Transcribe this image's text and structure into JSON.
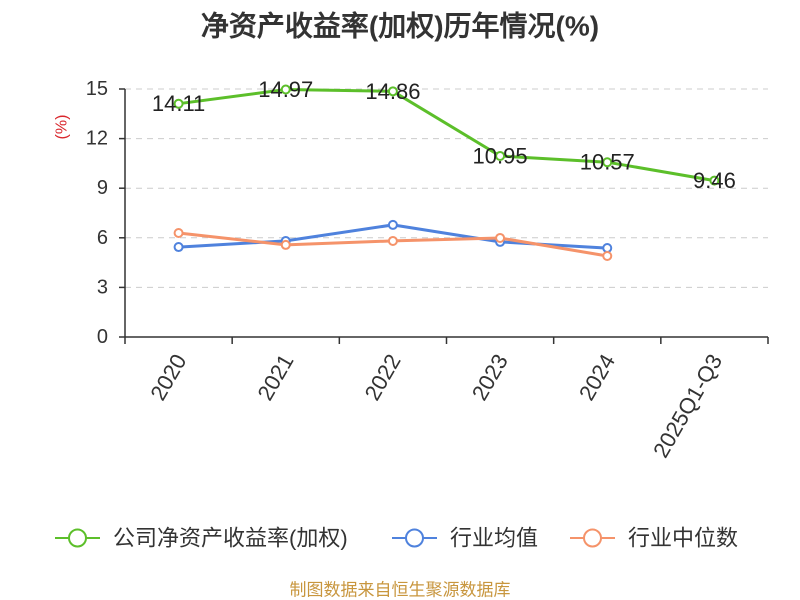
{
  "source_note": "制图数据来自恒生聚源数据库",
  "colors": {
    "title": "#333333",
    "ylabel": "#d9262c",
    "source_note": "#c8963e"
  },
  "chart_data": {
    "type": "line",
    "title": "净资产收益率(加权)历年情况(%)",
    "ylabel": "(%)",
    "categories": [
      "2020",
      "2021",
      "2022",
      "2023",
      "2024",
      "2025Q1-Q3"
    ],
    "ylim": [
      0,
      15
    ],
    "yticks": [
      0,
      3,
      6,
      9,
      12,
      15
    ],
    "grid": true,
    "legend": "bottom",
    "series": [
      {
        "name": "公司净资产收益率(加权)",
        "color": "#5cbf2a",
        "show_labels": true,
        "values": [
          14.11,
          14.97,
          14.86,
          10.95,
          10.57,
          9.46
        ]
      },
      {
        "name": "行业均值",
        "color": "#4f82dd",
        "show_labels": false,
        "values": [
          5.44,
          5.81,
          6.78,
          5.75,
          5.38,
          null
        ]
      },
      {
        "name": "行业中位数",
        "color": "#f5936a",
        "show_labels": false,
        "values": [
          6.29,
          5.57,
          5.81,
          5.99,
          4.9,
          null
        ]
      }
    ]
  }
}
